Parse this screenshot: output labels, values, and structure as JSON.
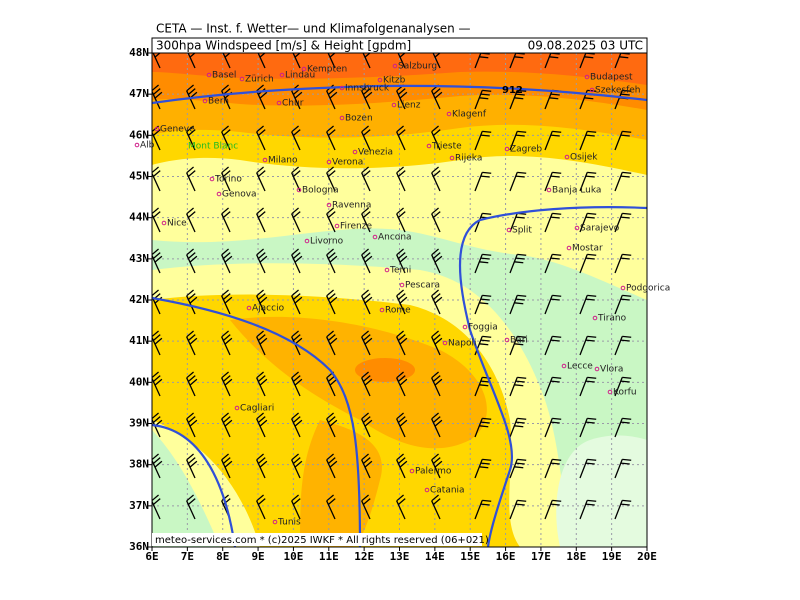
{
  "header": {
    "institute": "CETA — Inst. f. Wetter— und Klimafolgenanalysen —",
    "parameter": "300hpa Windspeed [m/s] & Height [gpdm]",
    "datetime": "09.08.2025 03 UTC"
  },
  "map": {
    "lat_labels": [
      "48N",
      "47N",
      "46N",
      "45N",
      "44N",
      "43N",
      "42N",
      "41N",
      "40N",
      "39N",
      "38N",
      "37N",
      "36N"
    ],
    "lon_labels": [
      "6E",
      "7E",
      "8E",
      "9E",
      "10E",
      "11E",
      "12E",
      "13E",
      "14E",
      "15E",
      "16E",
      "17E",
      "18E",
      "19E",
      "20E"
    ],
    "contour_label": "912",
    "peak_label": "Mont Blanc",
    "cities": [
      "Basel",
      "Zürich",
      "Lindau",
      "Kempten",
      "Salzburg",
      "Kitzb",
      "Innsbruck",
      "Budapest",
      "Szekesfeh",
      "Bern",
      "Chur",
      "Lienz",
      "Bozen",
      "Klagenf",
      "Geneve",
      "Alb",
      "Milano",
      "Verona",
      "Venezia",
      "Trieste",
      "Rijeka",
      "Zagreb",
      "Osijek",
      "Torino",
      "Banja Luka",
      "Genova",
      "Bologna",
      "Ravenna",
      "Nice",
      "Firenze",
      "Livorno",
      "Split",
      "Sarajevo",
      "Ancona",
      "Mostar",
      "Terni",
      "Pescara",
      "Podgorica",
      "Ajaccio",
      "Rome",
      "Tirano",
      "Foggia",
      "Bari",
      "Napoli",
      "Lecce",
      "Vlora",
      "Korfu",
      "Cagliari",
      "Palermo",
      "Catania",
      "Tunis"
    ],
    "footer": "meteo-services.com * (c)2025 IWKF * All rights reserved (06+021)"
  }
}
